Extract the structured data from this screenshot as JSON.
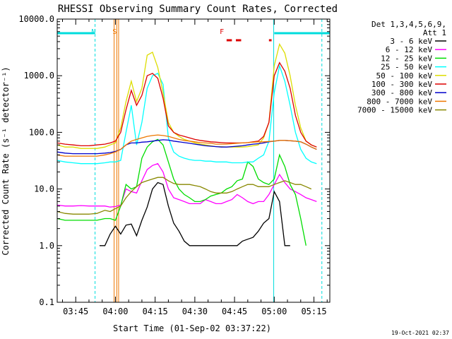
{
  "chart_data": {
    "type": "line",
    "title": "RHESSI Observing Summary Count Rates, Corrected",
    "xlabel": "Start Time (01-Sep-02 03:37:22)",
    "ylabel": "Corrected Count Rate (s⁻¹ detector⁻¹)",
    "y_scale": "log",
    "ylim": [
      0.1,
      10000
    ],
    "xlim": [
      218,
      321
    ],
    "x_unit": "minutes after 00:00 UT",
    "x_ticks": [
      {
        "value": 225,
        "label": "03:45"
      },
      {
        "value": 240,
        "label": "04:00"
      },
      {
        "value": 255,
        "label": "04:15"
      },
      {
        "value": 270,
        "label": "04:30"
      },
      {
        "value": 285,
        "label": "04:45"
      },
      {
        "value": 300,
        "label": "05:00"
      },
      {
        "value": 315,
        "label": "05:15"
      }
    ],
    "y_ticks": [
      {
        "value": 0.1,
        "label": "0.1"
      },
      {
        "value": 1,
        "label": "1.0"
      },
      {
        "value": 10,
        "label": "10.0"
      },
      {
        "value": 100,
        "label": "100.0"
      },
      {
        "value": 1000,
        "label": "1000.0"
      },
      {
        "value": 10000,
        "label": "10000.0"
      }
    ],
    "legend_header": [
      "Det 1,3,4,5,6,9,",
      "Att 1"
    ],
    "legend_position": "right",
    "series": [
      {
        "name": "3 - 6 keV",
        "color": "#000000",
        "x": [
          234,
          236,
          238,
          240,
          242,
          244,
          246,
          248,
          250,
          252,
          254,
          256,
          258,
          260,
          262,
          264,
          266,
          268,
          270,
          272,
          274,
          276,
          278,
          280,
          282,
          284,
          286,
          288,
          290,
          292,
          294,
          296,
          298,
          300,
          302,
          304,
          306
        ],
        "y": [
          1,
          1,
          1.6,
          2.2,
          1.6,
          2.3,
          2.4,
          1.5,
          2.8,
          4.8,
          10,
          13,
          12,
          5,
          2.5,
          1.8,
          1.2,
          1,
          1,
          1,
          1,
          1,
          1,
          1,
          1,
          1,
          1,
          1.2,
          1.3,
          1.4,
          1.8,
          2.5,
          3,
          9,
          6,
          1,
          1
        ]
      },
      {
        "name": "6 - 12 keV",
        "color": "#ff00ff",
        "x": [
          218,
          221,
          224,
          227,
          230,
          233,
          236,
          238,
          240,
          242,
          244,
          246,
          248,
          250,
          252,
          254,
          256,
          258,
          260,
          262,
          264,
          266,
          268,
          270,
          272,
          274,
          276,
          278,
          280,
          282,
          284,
          286,
          288,
          290,
          292,
          294,
          296,
          298,
          300,
          302,
          304,
          306,
          308,
          310,
          312,
          314,
          316
        ],
        "y": [
          5.2,
          5,
          5,
          5.1,
          5,
          5,
          5,
          4.8,
          4.9,
          5.2,
          10,
          9,
          8.5,
          14,
          22,
          26,
          28,
          20,
          10,
          7,
          6.5,
          6,
          5.5,
          5.5,
          5.5,
          6.5,
          6,
          5.5,
          5.5,
          6,
          6.5,
          8,
          7,
          6,
          5.5,
          6,
          6,
          8,
          12,
          18,
          13,
          10,
          9,
          8,
          7,
          6.5,
          6
        ]
      },
      {
        "name": "12 - 25 keV",
        "color": "#00dd00",
        "x": [
          218,
          221,
          224,
          227,
          230,
          233,
          236,
          238,
          240,
          242,
          244,
          246,
          248,
          250,
          252,
          254,
          256,
          258,
          260,
          262,
          264,
          266,
          268,
          270,
          272,
          274,
          276,
          278,
          280,
          282,
          284,
          286,
          288,
          290,
          292,
          294,
          296,
          298,
          300,
          302,
          304,
          306,
          308,
          310,
          312
        ],
        "y": [
          3,
          2.8,
          2.8,
          2.8,
          2.8,
          2.8,
          3,
          3,
          2.8,
          5,
          12,
          10,
          11,
          35,
          55,
          68,
          75,
          60,
          30,
          15,
          10,
          8,
          7,
          6,
          6,
          6.5,
          7.5,
          8,
          8.5,
          10,
          11,
          14,
          15,
          30,
          25,
          15,
          13,
          12,
          15,
          40,
          25,
          12,
          8,
          3,
          1
        ]
      },
      {
        "name": "25 - 50 keV",
        "color": "#00ffff",
        "x": [
          218,
          221,
          224,
          227,
          230,
          233,
          236,
          238,
          240,
          242,
          244,
          246,
          248,
          250,
          252,
          254,
          256,
          258,
          260,
          262,
          264,
          266,
          268,
          270,
          272,
          274,
          276,
          278,
          280,
          282,
          284,
          286,
          288,
          290,
          292,
          294,
          296,
          298,
          300,
          302,
          304,
          306,
          308,
          310,
          312,
          314,
          316
        ],
        "y": [
          32,
          30,
          29,
          28,
          28,
          28,
          29,
          30,
          30,
          32,
          100,
          300,
          60,
          150,
          600,
          1000,
          1100,
          700,
          80,
          45,
          38,
          35,
          33,
          32,
          32,
          31,
          31,
          30,
          30,
          30,
          29,
          29,
          29,
          30,
          30,
          35,
          40,
          70,
          500,
          1500,
          800,
          300,
          100,
          50,
          35,
          30,
          28
        ]
      },
      {
        "name": "50 - 100 keV",
        "color": "#dddd00",
        "x": [
          218,
          221,
          224,
          227,
          230,
          233,
          236,
          238,
          240,
          242,
          244,
          246,
          248,
          250,
          252,
          254,
          256,
          258,
          260,
          262,
          264,
          266,
          268,
          270,
          272,
          274,
          276,
          278,
          280,
          282,
          284,
          286,
          288,
          290,
          292,
          294,
          296,
          298,
          300,
          302,
          304,
          306,
          308,
          310,
          312,
          314,
          316
        ],
        "y": [
          60,
          55,
          55,
          52,
          52,
          52,
          55,
          60,
          65,
          120,
          350,
          800,
          350,
          600,
          2300,
          2600,
          1400,
          500,
          150,
          100,
          85,
          75,
          70,
          65,
          62,
          60,
          58,
          56,
          56,
          55,
          55,
          55,
          55,
          56,
          58,
          60,
          80,
          150,
          1500,
          3600,
          2500,
          1000,
          300,
          120,
          70,
          60,
          55
        ]
      },
      {
        "name": "100 - 300 keV",
        "color": "#dd0000",
        "x": [
          218,
          221,
          224,
          227,
          230,
          233,
          236,
          238,
          240,
          242,
          244,
          246,
          248,
          250,
          252,
          254,
          256,
          258,
          260,
          262,
          264,
          266,
          268,
          270,
          272,
          274,
          276,
          278,
          280,
          282,
          284,
          286,
          288,
          290,
          292,
          294,
          296,
          298,
          300,
          302,
          304,
          306,
          308,
          310,
          312,
          314,
          316
        ],
        "y": [
          65,
          62,
          60,
          58,
          58,
          60,
          62,
          65,
          70,
          100,
          250,
          550,
          300,
          450,
          1000,
          1100,
          900,
          400,
          130,
          100,
          90,
          85,
          80,
          75,
          72,
          70,
          68,
          67,
          66,
          65,
          65,
          65,
          65,
          66,
          68,
          70,
          85,
          150,
          1000,
          1700,
          1200,
          600,
          200,
          100,
          70,
          60,
          55
        ]
      },
      {
        "name": "300 - 800 keV",
        "color": "#0000cc",
        "x": [
          218,
          221,
          224,
          227,
          230,
          233,
          236,
          238,
          240,
          242,
          244,
          246,
          248,
          250,
          252,
          254,
          256,
          258,
          260,
          262,
          264,
          266,
          268,
          270,
          272,
          274,
          276,
          278,
          280,
          282,
          284,
          286,
          288,
          290,
          292,
          294,
          296,
          298,
          300,
          302,
          304,
          306,
          308,
          310,
          312,
          314,
          316
        ],
        "y": [
          45,
          43,
          42,
          42,
          42,
          42,
          43,
          44,
          46,
          50,
          60,
          65,
          65,
          67,
          68,
          70,
          72,
          74,
          73,
          70,
          68,
          66,
          64,
          62,
          60,
          58,
          57,
          56,
          55,
          55,
          56,
          57,
          58,
          60,
          62,
          63,
          65,
          68,
          70,
          72,
          72,
          71,
          70,
          68,
          62,
          55,
          50
        ]
      },
      {
        "name": "800 - 7000 keV",
        "color": "#ee7700",
        "x": [
          218,
          221,
          224,
          227,
          230,
          233,
          236,
          238,
          240,
          242,
          244,
          246,
          248,
          250,
          252,
          254,
          256,
          258,
          260,
          262,
          264,
          266,
          268,
          270,
          272,
          274,
          276,
          278,
          280,
          282,
          284,
          286,
          288,
          290,
          292,
          294,
          296,
          298,
          300,
          302,
          304,
          306,
          308,
          310,
          312,
          314,
          316
        ],
        "y": [
          40,
          38,
          38,
          38,
          38,
          38,
          40,
          42,
          45,
          50,
          60,
          70,
          75,
          80,
          85,
          88,
          90,
          88,
          85,
          80,
          75,
          72,
          70,
          68,
          66,
          65,
          64,
          62,
          62,
          62,
          63,
          64,
          65,
          66,
          67,
          68,
          68,
          69,
          70,
          72,
          72,
          71,
          70,
          68,
          62,
          55,
          50
        ]
      },
      {
        "name": "7000 - 15000 keV",
        "color": "#888800",
        "x": [
          218,
          221,
          224,
          227,
          230,
          233,
          236,
          238,
          240,
          242,
          244,
          246,
          248,
          250,
          252,
          254,
          256,
          258,
          260,
          262,
          264,
          266,
          268,
          270,
          272,
          274,
          276,
          278,
          280,
          282,
          284,
          286,
          288,
          290,
          292,
          294,
          296,
          298,
          300,
          302,
          304,
          306,
          308,
          310,
          312,
          314
        ],
        "y": [
          4,
          3.7,
          3.6,
          3.6,
          3.6,
          3.7,
          4.2,
          4,
          4.5,
          5,
          7,
          9,
          11,
          13,
          14,
          15,
          16,
          16,
          14,
          12.5,
          12,
          12,
          12,
          11.5,
          11,
          10,
          9,
          8.5,
          8.5,
          8.5,
          9,
          10,
          11,
          12,
          12,
          11,
          11,
          11,
          12,
          13,
          14,
          13,
          12,
          12,
          11,
          10
        ]
      }
    ],
    "annotations": [
      {
        "label": "N",
        "x": 232.5,
        "color": "#00dddd"
      },
      {
        "label": "S",
        "x": 240.5,
        "color": "#ee7700"
      },
      {
        "label": "F",
        "x": 281,
        "color": "#dd0000"
      }
    ],
    "night_segments": [
      [
        218,
        232
      ],
      [
        300,
        321
      ]
    ],
    "flare_segments": [
      [
        282,
        284
      ],
      [
        285.5,
        287.5
      ],
      [
        298,
        299
      ]
    ],
    "saa_lines": [
      239.5,
      240.5,
      241.2
    ],
    "night_dashed": [
      232.3,
      318
    ],
    "night_solid": [
      218,
      299.8
    ]
  },
  "timestamp": "19-Oct-2021 02:37"
}
